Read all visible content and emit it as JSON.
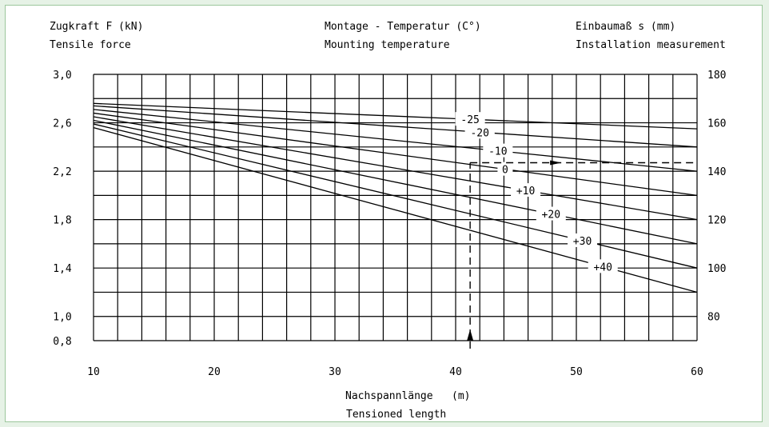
{
  "chart_data": {
    "type": "line",
    "headers": {
      "left_de": "Zugkraft F (kN)",
      "left_en": "Tensile force",
      "mid_de": "Montage - Temperatur (C°)",
      "mid_en": "Mounting temperature",
      "right_de": "Einbaumaß s (mm)",
      "right_en": "Installation measurement"
    },
    "xlabel_de": "Nachspannlänge",
    "xlabel_unit": "(m)",
    "xlabel_en": "Tensioned length",
    "xlim": [
      10,
      60
    ],
    "ylim": [
      0.8,
      3.0
    ],
    "y2lim": [
      70,
      180
    ],
    "x_ticks": [
      "10",
      "20",
      "30",
      "40",
      "50",
      "60"
    ],
    "y_ticks": [
      "3,0",
      "2,6",
      "2,2",
      "1,8",
      "1,4",
      "1,0",
      "0,8"
    ],
    "y_tick_values": [
      3.0,
      2.6,
      2.2,
      1.8,
      1.4,
      1.0,
      0.8
    ],
    "y2_ticks": [
      "180",
      "160",
      "140",
      "120",
      "100",
      "80"
    ],
    "y2_tick_values": [
      180,
      160,
      140,
      120,
      100,
      80
    ],
    "grid": true,
    "series": [
      {
        "name": "-25",
        "x": [
          10,
          60
        ],
        "y": [
          2.76,
          2.55
        ],
        "label_x": 41.2
      },
      {
        "name": "-20",
        "x": [
          10,
          60
        ],
        "y": [
          2.74,
          2.4
        ],
        "label_x": 42.0
      },
      {
        "name": "-10",
        "x": [
          10,
          60
        ],
        "y": [
          2.71,
          2.2
        ],
        "label_x": 43.5
      },
      {
        "name": "0",
        "x": [
          10,
          60
        ],
        "y": [
          2.68,
          2.0
        ],
        "label_x": 44.1
      },
      {
        "name": "+10",
        "x": [
          10,
          60
        ],
        "y": [
          2.65,
          1.8
        ],
        "label_x": 45.8
      },
      {
        "name": "+20",
        "x": [
          10,
          60
        ],
        "y": [
          2.62,
          1.6
        ],
        "label_x": 47.9
      },
      {
        "name": "+30",
        "x": [
          10,
          60
        ],
        "y": [
          2.59,
          1.4
        ],
        "label_x": 50.5
      },
      {
        "name": "+40",
        "x": [
          10,
          60
        ],
        "y": [
          2.56,
          1.2
        ],
        "label_x": 52.2
      }
    ],
    "guide": {
      "x": 41.2,
      "y": 2.27
    }
  }
}
